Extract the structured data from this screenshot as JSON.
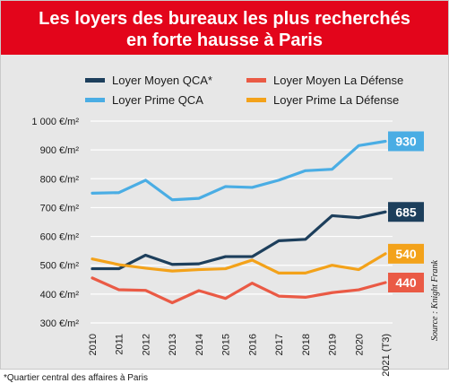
{
  "header": {
    "title_line1": "Les loyers des bureaux les plus recherchés",
    "title_line2": "en forte hausse à Paris"
  },
  "footnote": "*Quartier central des affaires à Paris",
  "source": "Source : Knight Frank",
  "colors": {
    "banner": "#e3051b",
    "moyen_qca": "#1d3f5c",
    "prime_qca": "#4aade4",
    "moyen_defense": "#ea5a45",
    "prime_defense": "#f3a21a"
  },
  "chart_data": {
    "type": "line",
    "title": "Les loyers des bureaux les plus recherchés en forte hausse à Paris",
    "x": [
      "2010",
      "2011",
      "2012",
      "2013",
      "2014",
      "2015",
      "2016",
      "2017",
      "2018",
      "2019",
      "2020",
      "2021 (T3)"
    ],
    "ylim": [
      300,
      1000
    ],
    "yticks": [
      300,
      400,
      500,
      600,
      700,
      800,
      900,
      1000
    ],
    "ytick_labels": [
      "300 €/m²",
      "400 €/m²",
      "500 €/m²",
      "600 €/m²",
      "700 €/m²",
      "800 €/m²",
      "900 €/m²",
      "1 000 €/m²"
    ],
    "grid": "horizontal",
    "legend_position": "top",
    "series": [
      {
        "name": "Loyer Moyen QCA*",
        "color": "#1d3f5c",
        "values": [
          488,
          488,
          535,
          503,
          505,
          530,
          530,
          585,
          590,
          672,
          665,
          685
        ],
        "end_label": "685"
      },
      {
        "name": "Loyer Prime QCA",
        "color": "#4aade4",
        "values": [
          750,
          752,
          795,
          727,
          732,
          773,
          770,
          795,
          828,
          833,
          915,
          930
        ],
        "end_label": "930"
      },
      {
        "name": "Loyer Moyen La Défense",
        "color": "#ea5a45",
        "values": [
          456,
          415,
          413,
          370,
          412,
          385,
          438,
          393,
          389,
          405,
          415,
          440
        ],
        "end_label": "440"
      },
      {
        "name": "Loyer Prime La Défense",
        "color": "#f3a21a",
        "values": [
          522,
          502,
          490,
          480,
          485,
          488,
          518,
          473,
          473,
          500,
          485,
          540
        ],
        "end_label": "540"
      }
    ]
  }
}
